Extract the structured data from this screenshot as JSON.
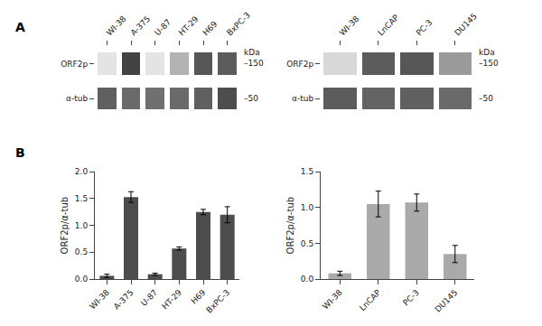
{
  "chart_data": [
    {
      "type": "heatmap",
      "title": "A",
      "categories": [
        "WI-38",
        "A-375",
        "U-87",
        "HT-29",
        "H69",
        "BxPC-3"
      ],
      "series": [
        {
          "name": "ORF2p",
          "values": [
            0.02,
            0.85,
            0.02,
            0.28,
            0.75,
            0.72
          ]
        },
        {
          "name": "α-tub",
          "values": [
            0.7,
            0.65,
            0.62,
            0.65,
            0.7,
            0.8
          ]
        }
      ],
      "zlim": [
        0,
        1
      ],
      "annotations": [
        {
          "text": "kDa"
        },
        {
          "text": "–150",
          "y": "ORF2p"
        },
        {
          "text": "–50",
          "y": "α-tub"
        }
      ]
    },
    {
      "type": "heatmap",
      "categories": [
        "WI-38",
        "LnCAP",
        "PC-3",
        "DU145"
      ],
      "series": [
        {
          "name": "ORF2p",
          "values": [
            0.08,
            0.72,
            0.75,
            0.4
          ]
        },
        {
          "name": "α-tub",
          "values": [
            0.72,
            0.68,
            0.7,
            0.65
          ]
        }
      ],
      "zlim": [
        0,
        1
      ],
      "annotations": [
        {
          "text": "kDa"
        },
        {
          "text": "–150",
          "y": "ORF2p"
        },
        {
          "text": "–50",
          "y": "α-tub"
        }
      ]
    },
    {
      "type": "bar",
      "title": "B",
      "categories": [
        "WI-38",
        "A-375",
        "U-87",
        "HT-29",
        "H69",
        "BxPC-3"
      ],
      "values": [
        0.06,
        1.53,
        0.09,
        0.57,
        1.25,
        1.2
      ],
      "errors": [
        0.03,
        0.1,
        0.02,
        0.03,
        0.05,
        0.15
      ],
      "color": "#4d4d4d",
      "ylim": [
        0,
        2.0
      ],
      "yticks": [
        {
          "value": 0.0,
          "label": "0.0"
        },
        0.5,
        {
          "value": 1.0,
          "label": "1.0"
        },
        1.5,
        {
          "value": 2.0,
          "label": "2.0"
        }
      ],
      "ylabel": "ORF2p/α-tub",
      "grid": false
    },
    {
      "type": "bar",
      "categories": [
        "WI-38",
        "LnCAP",
        "PC-3",
        "DU145"
      ],
      "values": [
        0.08,
        1.05,
        1.07,
        0.35
      ],
      "errors": [
        0.03,
        0.18,
        0.12,
        0.12
      ],
      "color": "#aaaaaa",
      "ylim": [
        0,
        1.5
      ],
      "yticks": [
        {
          "value": 0.0,
          "label": "0.0"
        },
        0.5,
        {
          "value": 1.0,
          "label": "1.0"
        },
        1.5
      ],
      "ylabel": "ORF2p/α-tub",
      "grid": false
    }
  ]
}
